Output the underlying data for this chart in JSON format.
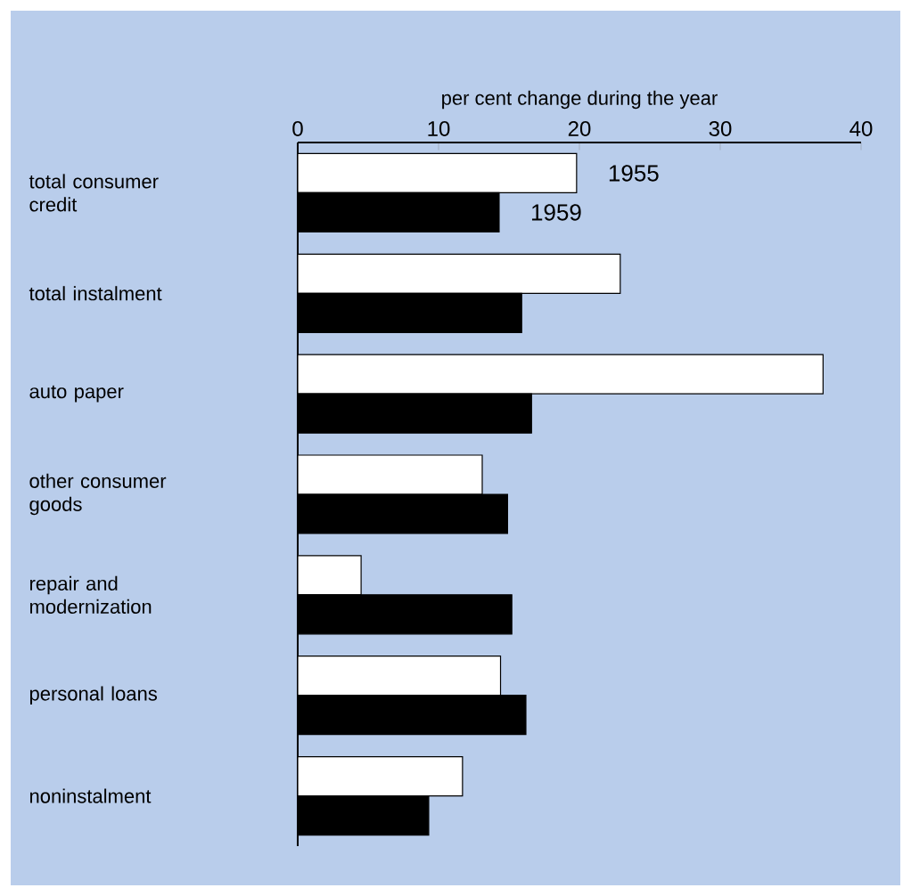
{
  "chart_data": {
    "type": "bar",
    "orientation": "horizontal",
    "xlabel": "per cent change during the year",
    "categories": [
      "total consumer credit",
      "total instalment",
      "auto paper",
      "other consumer goods",
      "repair and modernization",
      "personal loans",
      "noninstalment"
    ],
    "series": [
      {
        "name": "1955",
        "color": "#ffffff",
        "values": [
          19.8,
          22.9,
          37.3,
          13.1,
          4.5,
          14.4,
          11.7
        ]
      },
      {
        "name": "1959",
        "color": "#000000",
        "values": [
          14.3,
          15.9,
          16.6,
          14.9,
          15.2,
          16.2,
          9.3
        ]
      }
    ],
    "xlim": [
      0,
      40
    ],
    "xticks": [
      0,
      10,
      20,
      30,
      40
    ],
    "legend": false,
    "grid": false
  }
}
